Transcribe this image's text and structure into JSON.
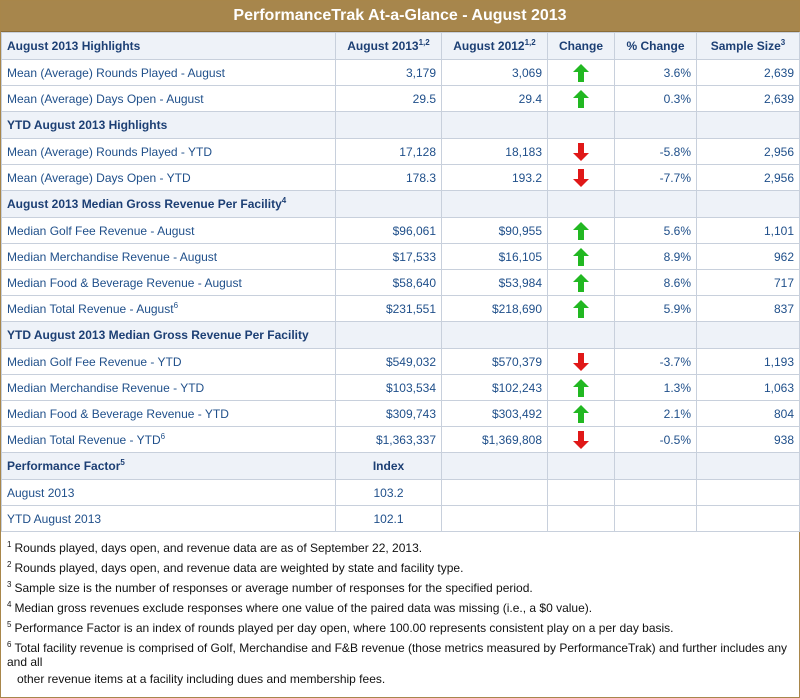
{
  "title": "PerformanceTrak At-a-Glance - August 2013",
  "columns": {
    "label": "August 2013 Highlights",
    "aug2013": "August 2013",
    "aug2013_sup": "1,2",
    "aug2012": "August 2012",
    "aug2012_sup": "1,2",
    "change": "Change",
    "pct": "% Change",
    "sample": "Sample Size",
    "sample_sup": "3"
  },
  "section1_rows": [
    {
      "label": "Mean (Average) Rounds Played - August",
      "v13": "3,179",
      "v12": "3,069",
      "dir": "up",
      "pct": "3.6%",
      "sample": "2,639"
    },
    {
      "label": "Mean (Average) Days Open - August",
      "v13": "29.5",
      "v12": "29.4",
      "dir": "up",
      "pct": "0.3%",
      "sample": "2,639"
    }
  ],
  "section2": {
    "label": "YTD August 2013 Highlights"
  },
  "section2_rows": [
    {
      "label": "Mean (Average) Rounds Played - YTD",
      "v13": "17,128",
      "v12": "18,183",
      "dir": "down",
      "pct": "-5.8%",
      "sample": "2,956"
    },
    {
      "label": "Mean (Average) Days Open - YTD",
      "v13": "178.3",
      "v12": "193.2",
      "dir": "down",
      "pct": "-7.7%",
      "sample": "2,956"
    }
  ],
  "section3": {
    "label": "August 2013 Median Gross Revenue Per Facility",
    "sup": "4"
  },
  "section3_rows": [
    {
      "label": "Median Golf Fee Revenue - August",
      "v13": "$96,061",
      "v12": "$90,955",
      "dir": "up",
      "pct": "5.6%",
      "sample": "1,101"
    },
    {
      "label": "Median Merchandise Revenue - August",
      "v13": "$17,533",
      "v12": "$16,105",
      "dir": "up",
      "pct": "8.9%",
      "sample": "962"
    },
    {
      "label": "Median Food & Beverage Revenue - August",
      "v13": "$58,640",
      "v12": "$53,984",
      "dir": "up",
      "pct": "8.6%",
      "sample": "717"
    },
    {
      "label": "Median Total Revenue - August",
      "sup": "6",
      "v13": "$231,551",
      "v12": "$218,690",
      "dir": "up",
      "pct": "5.9%",
      "sample": "837"
    }
  ],
  "section4": {
    "label": "YTD August 2013 Median Gross Revenue Per Facility"
  },
  "section4_rows": [
    {
      "label": "Median Golf Fee Revenue - YTD",
      "v13": "$549,032",
      "v12": "$570,379",
      "dir": "down",
      "pct": "-3.7%",
      "sample": "1,193"
    },
    {
      "label": "Median Merchandise Revenue - YTD",
      "v13": "$103,534",
      "v12": "$102,243",
      "dir": "up",
      "pct": "1.3%",
      "sample": "1,063"
    },
    {
      "label": "Median Food & Beverage Revenue - YTD",
      "v13": "$309,743",
      "v12": "$303,492",
      "dir": "up",
      "pct": "2.1%",
      "sample": "804"
    },
    {
      "label": "Median Total Revenue - YTD",
      "sup": "6",
      "v13": "$1,363,337",
      "v12": "$1,369,808",
      "dir": "down",
      "pct": "-0.5%",
      "sample": "938"
    }
  ],
  "section5": {
    "label": "Performance Factor",
    "sup": "5",
    "index_label": "Index"
  },
  "section5_rows": [
    {
      "label": "August 2013",
      "index": "103.2"
    },
    {
      "label": "YTD August 2013",
      "index": "102.1"
    }
  ],
  "footnotes": [
    {
      "n": "1",
      "text": "Rounds played, days open, and revenue data are as of September 22, 2013."
    },
    {
      "n": "2",
      "text": "Rounds played, days open, and revenue data are weighted by state and facility type."
    },
    {
      "n": "3",
      "text": "Sample size is the number of responses or average number of responses for the specified period."
    },
    {
      "n": "4",
      "text": "Median gross revenues exclude responses where one value of the paired data was missing (i.e., a $0 value)."
    },
    {
      "n": "5",
      "text": "Performance Factor is an index of rounds played per day open, where 100.00 represents consistent play on a per day basis."
    },
    {
      "n": "6",
      "text": "Total facility revenue is comprised of Golf, Merchandise and F&B revenue (those metrics measured by PerformanceTrak) and further includes any and all"
    }
  ],
  "footnote6_cont": "other revenue items at a facility including dues and membership fees.",
  "colors": {
    "up": "#22b822",
    "down": "#e01818",
    "accent": "#a7864c"
  }
}
